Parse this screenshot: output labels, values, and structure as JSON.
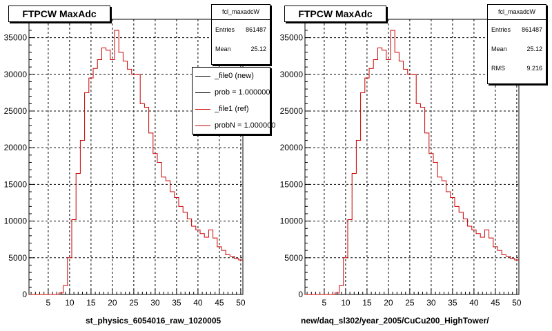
{
  "chart_data": [
    {
      "type": "histogram",
      "title": "FTPCW MaxAdc",
      "xlabel": "st_physics_6054016_raw_1020005",
      "ylabel": "",
      "xlim": [
        0.5,
        50.5
      ],
      "ylim": [
        0,
        37500
      ],
      "grid": true,
      "x_ticks": [
        5,
        10,
        15,
        20,
        25,
        30,
        35,
        40,
        45,
        50
      ],
      "y_ticks": [
        0,
        5000,
        10000,
        15000,
        20000,
        25000,
        30000,
        35000
      ],
      "stats": {
        "name": "fcl_maxadcW",
        "entries_label": "Entries",
        "entries": "861487",
        "mean_label": "Mean",
        "mean": "25.12"
      },
      "legend": {
        "position": "top-right",
        "entries": [
          {
            "label": "_file0 (new)",
            "color": "#000000"
          },
          {
            "label": "prob = 1.000000",
            "color": "#000000"
          },
          {
            "label": "_file1 (ref)",
            "color": "#cc0000"
          },
          {
            "label": "probN = 1.000000",
            "color": "#cc0000"
          }
        ]
      },
      "line_color": "#cc0000",
      "series": [
        {
          "bin_edges_start": 0.5,
          "bin_width": 1,
          "values": [
            0,
            0,
            0,
            0,
            0,
            0,
            0,
            200,
            1200,
            5000,
            10200,
            16500,
            21000,
            27500,
            29500,
            30800,
            32000,
            33600,
            33300,
            32000,
            36000,
            33000,
            31800,
            30700,
            30000,
            30000,
            26000,
            25500,
            22000,
            19200,
            18000,
            16000,
            15500,
            14000,
            13200,
            12000,
            11200,
            10300,
            9300,
            8800,
            8300,
            7800,
            8800,
            7700,
            6500,
            6000,
            5400,
            5200,
            4900,
            4700
          ]
        }
      ]
    },
    {
      "type": "histogram",
      "title": "FTPCW MaxAdc",
      "xlabel": "new/daq_sl302/year_2005/CuCu200_HighTower/",
      "ylabel": "",
      "xlim": [
        0.5,
        50.5
      ],
      "ylim": [
        0,
        37500
      ],
      "grid": true,
      "x_ticks": [
        5,
        10,
        15,
        20,
        25,
        30,
        35,
        40,
        45,
        50
      ],
      "y_ticks": [
        0,
        5000,
        10000,
        15000,
        20000,
        25000,
        30000,
        35000
      ],
      "stats": {
        "name": "fcl_maxadcW",
        "entries_label": "Entries",
        "entries": "861487",
        "mean_label": "Mean",
        "mean": "25.12",
        "rms_label": "RMS",
        "rms": "9.216"
      },
      "line_color": "#cc0000",
      "series": [
        {
          "bin_edges_start": 0.5,
          "bin_width": 1,
          "values": [
            0,
            0,
            0,
            0,
            0,
            0,
            0,
            200,
            1200,
            5000,
            10200,
            16500,
            21000,
            27500,
            29500,
            30800,
            32000,
            33600,
            33300,
            32000,
            36000,
            33000,
            31800,
            30700,
            30000,
            30000,
            26000,
            25500,
            22000,
            19200,
            18000,
            16000,
            15500,
            14000,
            13200,
            12000,
            11200,
            10300,
            9300,
            8800,
            8300,
            7800,
            8800,
            7700,
            6500,
            6000,
            5400,
            5200,
            4900,
            4700
          ]
        }
      ]
    }
  ]
}
